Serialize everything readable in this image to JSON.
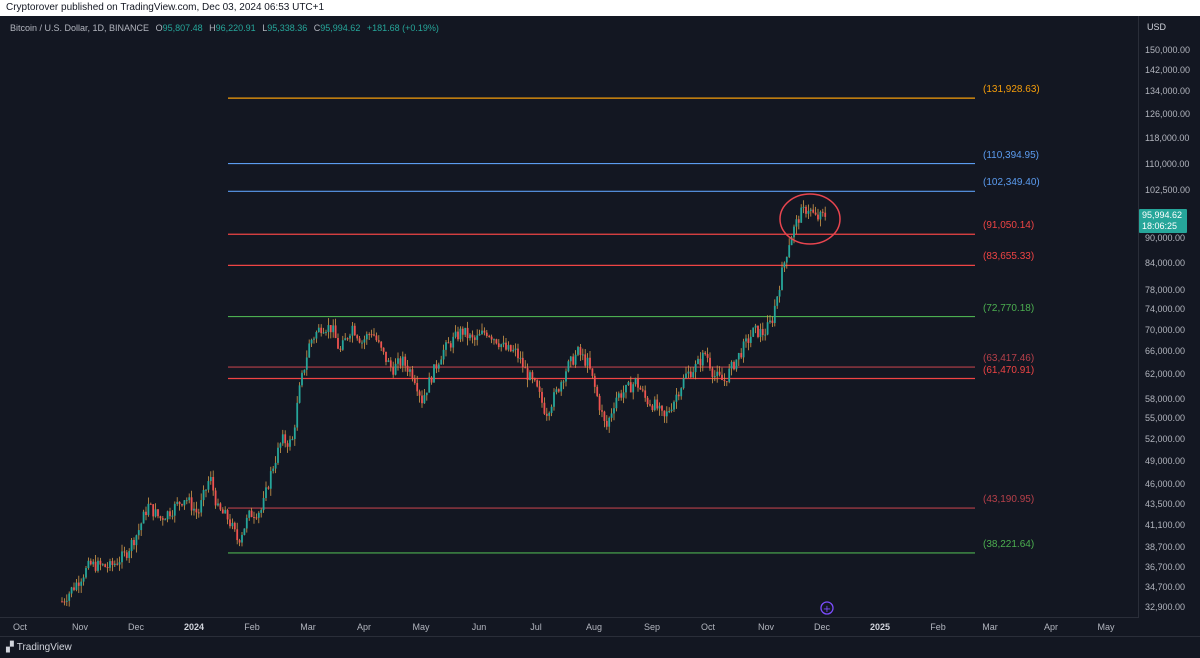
{
  "topbar": {
    "text": "Cryptorover published on TradingView.com, Dec 03, 2024 06:53 UTC+1"
  },
  "legend": {
    "symbol": "Bitcoin / U.S. Dollar, 1D, BINANCE",
    "o_label": "O",
    "o": "95,807.48",
    "h_label": "H",
    "h": "96,220.91",
    "l_label": "L",
    "l": "95,338.36",
    "c_label": "C",
    "c": "95,994.62",
    "change": "+181.68 (+0.19%)"
  },
  "yaxis": {
    "unit": "USD",
    "ticks": [
      "150,000.00",
      "142,000.00",
      "134,000.00",
      "126,000.00",
      "118,000.00",
      "110,000.00",
      "102,500.00",
      "90,000.00",
      "84,000.00",
      "78,000.00",
      "74,000.00",
      "70,000.00",
      "66,000.00",
      "62,000.00",
      "58,000.00",
      "55,000.00",
      "52,000.00",
      "49,000.00",
      "46,000.00",
      "43,500.00",
      "41,100.00",
      "38,700.00",
      "36,700.00",
      "34,700.00",
      "32,900.00"
    ]
  },
  "price_tag": {
    "price": "95,994.62",
    "countdown": "18:06:25",
    "color": "#26a69a"
  },
  "xaxis": {
    "ticks": [
      {
        "label": "Oct",
        "bold": false
      },
      {
        "label": "Nov",
        "bold": false
      },
      {
        "label": "Dec",
        "bold": false
      },
      {
        "label": "2024",
        "bold": true
      },
      {
        "label": "Feb",
        "bold": false
      },
      {
        "label": "Mar",
        "bold": false
      },
      {
        "label": "Apr",
        "bold": false
      },
      {
        "label": "May",
        "bold": false
      },
      {
        "label": "Jun",
        "bold": false
      },
      {
        "label": "Jul",
        "bold": false
      },
      {
        "label": "Aug",
        "bold": false
      },
      {
        "label": "Sep",
        "bold": false
      },
      {
        "label": "Oct",
        "bold": false
      },
      {
        "label": "Nov",
        "bold": false
      },
      {
        "label": "Dec",
        "bold": false
      },
      {
        "label": "2025",
        "bold": true
      },
      {
        "label": "Feb",
        "bold": false
      },
      {
        "label": "Mar",
        "bold": false
      },
      {
        "label": "Apr",
        "bold": false
      },
      {
        "label": "May",
        "bold": false
      }
    ]
  },
  "levels": [
    {
      "label": "(131,928.63)",
      "value": 131928.63,
      "color": "#f59e0b"
    },
    {
      "label": "(110,394.95)",
      "value": 110394.95,
      "color": "#5b9cf0"
    },
    {
      "label": "(102,349.40)",
      "value": 102349.4,
      "color": "#5b9cf0"
    },
    {
      "label": "(91,050.14)",
      "value": 91050.14,
      "color": "#ef4444"
    },
    {
      "label": "(83,655.33)",
      "value": 83655.33,
      "color": "#ef4444"
    },
    {
      "label": "(72,770.18)",
      "value": 72770.18,
      "color": "#4caf50"
    },
    {
      "label": "(63,417.46)",
      "value": 63417.46,
      "color": "#b7404a"
    },
    {
      "label": "(61,470.91)",
      "value": 61470.91,
      "color": "#ef4444"
    },
    {
      "label": "(43,190.95)",
      "value": 43190.95,
      "color": "#b7404a"
    },
    {
      "label": "(38,221.64)",
      "value": 38221.64,
      "color": "#4caf50"
    }
  ],
  "colors": {
    "up": "#26a69a",
    "down": "#ef5350",
    "wick": "#d19a4a",
    "circle": "#e8454f"
  },
  "footer": {
    "logo": "TradingView"
  }
}
